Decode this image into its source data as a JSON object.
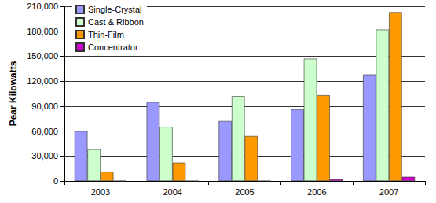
{
  "chart_data": {
    "type": "bar",
    "y_label": "Pear Kilowatts",
    "categories": [
      "2003",
      "2004",
      "2005",
      "2006",
      "2007"
    ],
    "series": [
      {
        "name": "Single-Crystal",
        "color": "#9999FF",
        "values": [
          60000,
          95000,
          72000,
          86000,
          128000
        ]
      },
      {
        "name": "Cast & Ribbon",
        "color": "#CCFFCC",
        "values": [
          38000,
          65000,
          102000,
          147000,
          182000
        ]
      },
      {
        "name": "Thin-Film",
        "color": "#FF9900",
        "values": [
          11000,
          22000,
          54000,
          103000,
          203000
        ]
      },
      {
        "name": "Concentrator",
        "color": "#CC00CC",
        "values": [
          0,
          0,
          0,
          2000,
          5000
        ]
      }
    ],
    "ylim": [
      0,
      210000
    ],
    "yticks": [
      0,
      {
        "value": 30000,
        "label": "30,000"
      },
      {
        "value": 60000,
        "label": "60,000"
      },
      {
        "value": 90000,
        "label": "90,000"
      },
      {
        "value": 120000,
        "label": "120,000"
      },
      {
        "value": 150000,
        "label": "150,000"
      },
      {
        "value": 180000,
        "label": "180,000"
      },
      {
        "value": 210000,
        "label": "210,000"
      }
    ],
    "grid": true,
    "legend": "top-left"
  }
}
